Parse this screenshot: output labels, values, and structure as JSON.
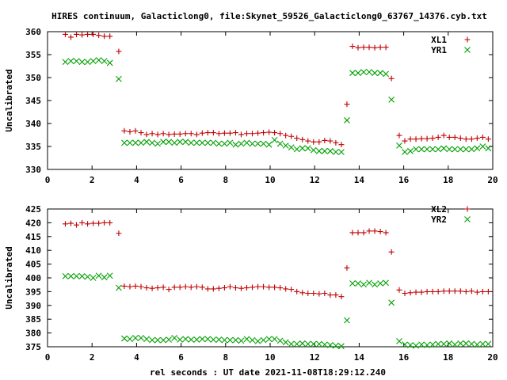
{
  "title": "HIRES continuum, Galacticlong0, file:Skynet_59526_Galacticlong0_63767_14376.cyb.txt",
  "xlabel": "rel seconds : UT date 2021-11-08T18:29:12.240",
  "chart_data": [
    {
      "type": "scatter",
      "ylabel": "Uncalibrated",
      "xlim": [
        0,
        20
      ],
      "ylim": [
        330,
        360
      ],
      "xticks": [
        0,
        2,
        4,
        6,
        8,
        10,
        12,
        14,
        16,
        18,
        20
      ],
      "yticks": [
        330,
        335,
        340,
        345,
        350,
        355,
        360
      ],
      "legend_position": "top-right",
      "grid": false,
      "series": [
        {
          "name": "XL1",
          "marker": "+",
          "color": "#c00000",
          "x": [
            0.8,
            1.05,
            1.3,
            1.55,
            1.8,
            2.05,
            2.3,
            2.55,
            2.8,
            3.2,
            3.45,
            3.7,
            3.95,
            4.2,
            4.45,
            4.7,
            4.95,
            5.2,
            5.45,
            5.7,
            5.95,
            6.2,
            6.45,
            6.7,
            6.95,
            7.2,
            7.45,
            7.7,
            7.95,
            8.2,
            8.45,
            8.7,
            8.95,
            9.2,
            9.45,
            9.7,
            9.95,
            10.2,
            10.45,
            10.7,
            10.95,
            11.2,
            11.45,
            11.7,
            11.95,
            12.2,
            12.45,
            12.7,
            12.95,
            13.2,
            13.45,
            13.7,
            13.95,
            14.2,
            14.45,
            14.7,
            14.95,
            15.2,
            15.45,
            15.8,
            16.05,
            16.3,
            16.55,
            16.8,
            17.05,
            17.3,
            17.55,
            17.8,
            18.05,
            18.3,
            18.55,
            18.8,
            19.05,
            19.3,
            19.55,
            19.8
          ],
          "y": [
            359.4,
            358.8,
            359.4,
            359.3,
            359.4,
            359.4,
            359.2,
            359.0,
            359.0,
            355.7,
            338.4,
            338.2,
            338.4,
            338.0,
            337.6,
            337.8,
            337.6,
            337.8,
            337.6,
            337.7,
            337.7,
            337.8,
            337.8,
            337.6,
            337.9,
            338.0,
            338.0,
            337.8,
            337.9,
            337.9,
            338.0,
            337.6,
            337.8,
            337.8,
            337.9,
            338.0,
            338.1,
            338.0,
            337.8,
            337.4,
            337.2,
            336.8,
            336.5,
            336.2,
            336.0,
            336.0,
            336.3,
            336.2,
            335.8,
            335.4,
            344.2,
            356.8,
            356.5,
            356.6,
            356.6,
            356.5,
            356.6,
            356.6,
            349.8,
            337.4,
            336.2,
            336.6,
            336.6,
            336.7,
            336.7,
            336.8,
            337.0,
            337.4,
            337.0,
            337.0,
            336.8,
            336.6,
            336.6,
            336.8,
            337.0,
            336.6
          ]
        },
        {
          "name": "YR1",
          "marker": "x",
          "color": "#00a000",
          "x": [
            0.8,
            1.05,
            1.3,
            1.55,
            1.8,
            2.05,
            2.3,
            2.55,
            2.8,
            3.2,
            3.45,
            3.7,
            3.95,
            4.2,
            4.45,
            4.7,
            4.95,
            5.2,
            5.45,
            5.7,
            5.95,
            6.2,
            6.45,
            6.7,
            6.95,
            7.2,
            7.45,
            7.7,
            7.95,
            8.2,
            8.45,
            8.7,
            8.95,
            9.2,
            9.45,
            9.7,
            9.95,
            10.2,
            10.45,
            10.7,
            10.95,
            11.2,
            11.45,
            11.7,
            11.95,
            12.2,
            12.45,
            12.7,
            12.95,
            13.2,
            13.45,
            13.7,
            13.95,
            14.2,
            14.45,
            14.7,
            14.95,
            15.2,
            15.45,
            15.8,
            16.05,
            16.3,
            16.55,
            16.8,
            17.05,
            17.3,
            17.55,
            17.8,
            18.05,
            18.3,
            18.55,
            18.8,
            19.05,
            19.3,
            19.55,
            19.8
          ],
          "y": [
            353.4,
            353.6,
            353.6,
            353.4,
            353.4,
            353.6,
            353.8,
            353.6,
            353.2,
            349.7,
            335.8,
            335.8,
            335.8,
            335.8,
            336.0,
            335.8,
            335.6,
            336.0,
            336.0,
            335.8,
            336.0,
            336.0,
            335.8,
            335.8,
            335.8,
            335.8,
            335.8,
            335.6,
            335.6,
            335.8,
            335.4,
            335.6,
            335.8,
            335.6,
            335.6,
            335.6,
            335.4,
            336.4,
            335.6,
            335.2,
            334.8,
            334.4,
            334.6,
            334.6,
            334.2,
            334.0,
            334.0,
            334.0,
            333.8,
            333.8,
            340.7,
            351.0,
            351.0,
            351.2,
            351.2,
            351.0,
            351.0,
            350.8,
            345.2,
            335.2,
            333.8,
            334.0,
            334.4,
            334.4,
            334.4,
            334.4,
            334.4,
            334.6,
            334.4,
            334.4,
            334.4,
            334.4,
            334.4,
            334.6,
            335.0,
            334.6
          ]
        }
      ]
    },
    {
      "type": "scatter",
      "ylabel": "Uncalibrated",
      "xlim": [
        0,
        20
      ],
      "ylim": [
        375,
        425
      ],
      "xticks": [
        0,
        2,
        4,
        6,
        8,
        10,
        12,
        14,
        16,
        18,
        20
      ],
      "yticks": [
        375,
        380,
        385,
        390,
        395,
        400,
        405,
        410,
        415,
        420,
        425
      ],
      "legend_position": "top-right",
      "grid": false,
      "series": [
        {
          "name": "XL2",
          "marker": "+",
          "color": "#c00000",
          "x": [
            0.8,
            1.05,
            1.3,
            1.55,
            1.8,
            2.05,
            2.3,
            2.55,
            2.8,
            3.2,
            3.45,
            3.7,
            3.95,
            4.2,
            4.45,
            4.7,
            4.95,
            5.2,
            5.45,
            5.7,
            5.95,
            6.2,
            6.45,
            6.7,
            6.95,
            7.2,
            7.45,
            7.7,
            7.95,
            8.2,
            8.45,
            8.7,
            8.95,
            9.2,
            9.45,
            9.7,
            9.95,
            10.2,
            10.45,
            10.7,
            10.95,
            11.2,
            11.45,
            11.7,
            11.95,
            12.2,
            12.45,
            12.7,
            12.95,
            13.2,
            13.45,
            13.7,
            13.95,
            14.2,
            14.45,
            14.7,
            14.95,
            15.2,
            15.45,
            15.8,
            16.05,
            16.3,
            16.55,
            16.8,
            17.05,
            17.3,
            17.55,
            17.8,
            18.05,
            18.3,
            18.55,
            18.8,
            19.05,
            19.3,
            19.55,
            19.8
          ],
          "y": [
            419.6,
            419.8,
            419.2,
            420.0,
            419.6,
            419.8,
            419.8,
            420.0,
            420.0,
            416.2,
            397.0,
            396.8,
            397.0,
            396.8,
            396.4,
            396.2,
            396.4,
            396.6,
            395.8,
            396.6,
            396.6,
            396.8,
            396.6,
            396.8,
            396.6,
            396.0,
            396.0,
            396.2,
            396.4,
            396.8,
            396.4,
            396.2,
            396.4,
            396.6,
            396.8,
            396.8,
            396.6,
            396.6,
            396.4,
            396.0,
            395.8,
            395.0,
            394.6,
            394.4,
            394.4,
            394.2,
            394.4,
            393.8,
            393.8,
            393.2,
            403.6,
            416.4,
            416.4,
            416.4,
            417.0,
            417.0,
            416.8,
            416.4,
            409.4,
            395.6,
            394.4,
            394.6,
            394.8,
            394.8,
            395.0,
            395.0,
            395.0,
            395.2,
            395.2,
            395.2,
            395.2,
            395.0,
            395.2,
            394.8,
            395.0,
            395.0
          ]
        },
        {
          "name": "YR2",
          "marker": "x",
          "color": "#00a000",
          "x": [
            0.8,
            1.05,
            1.3,
            1.55,
            1.8,
            2.05,
            2.3,
            2.55,
            2.8,
            3.2,
            3.45,
            3.7,
            3.95,
            4.2,
            4.45,
            4.7,
            4.95,
            5.2,
            5.45,
            5.7,
            5.95,
            6.2,
            6.45,
            6.7,
            6.95,
            7.2,
            7.45,
            7.7,
            7.95,
            8.2,
            8.45,
            8.7,
            8.95,
            9.2,
            9.45,
            9.7,
            9.95,
            10.2,
            10.45,
            10.7,
            10.95,
            11.2,
            11.45,
            11.7,
            11.95,
            12.2,
            12.45,
            12.7,
            12.95,
            13.2,
            13.45,
            13.7,
            13.95,
            14.2,
            14.45,
            14.7,
            14.95,
            15.2,
            15.45,
            15.8,
            16.05,
            16.3,
            16.55,
            16.8,
            17.05,
            17.3,
            17.55,
            17.8,
            18.05,
            18.3,
            18.55,
            18.8,
            19.05,
            19.3,
            19.55,
            19.8
          ],
          "y": [
            400.6,
            400.6,
            400.6,
            400.6,
            400.4,
            400.0,
            400.8,
            400.2,
            400.8,
            396.4,
            378.0,
            377.8,
            378.2,
            378.2,
            377.8,
            377.4,
            377.4,
            377.4,
            377.6,
            378.2,
            377.6,
            377.8,
            377.6,
            377.6,
            377.8,
            377.8,
            377.6,
            377.6,
            377.4,
            377.4,
            377.4,
            377.2,
            377.8,
            377.4,
            377.0,
            377.4,
            377.8,
            377.8,
            377.2,
            376.6,
            376.0,
            376.0,
            376.2,
            376.0,
            376.0,
            376.0,
            375.8,
            375.6,
            375.4,
            375.2,
            384.6,
            398.0,
            398.0,
            397.6,
            398.2,
            397.6,
            398.0,
            398.2,
            391.0,
            377.0,
            375.8,
            375.6,
            375.4,
            375.8,
            375.6,
            375.8,
            376.0,
            376.0,
            376.2,
            375.8,
            376.2,
            376.2,
            376.0,
            375.8,
            376.0,
            376.0
          ]
        }
      ]
    }
  ]
}
